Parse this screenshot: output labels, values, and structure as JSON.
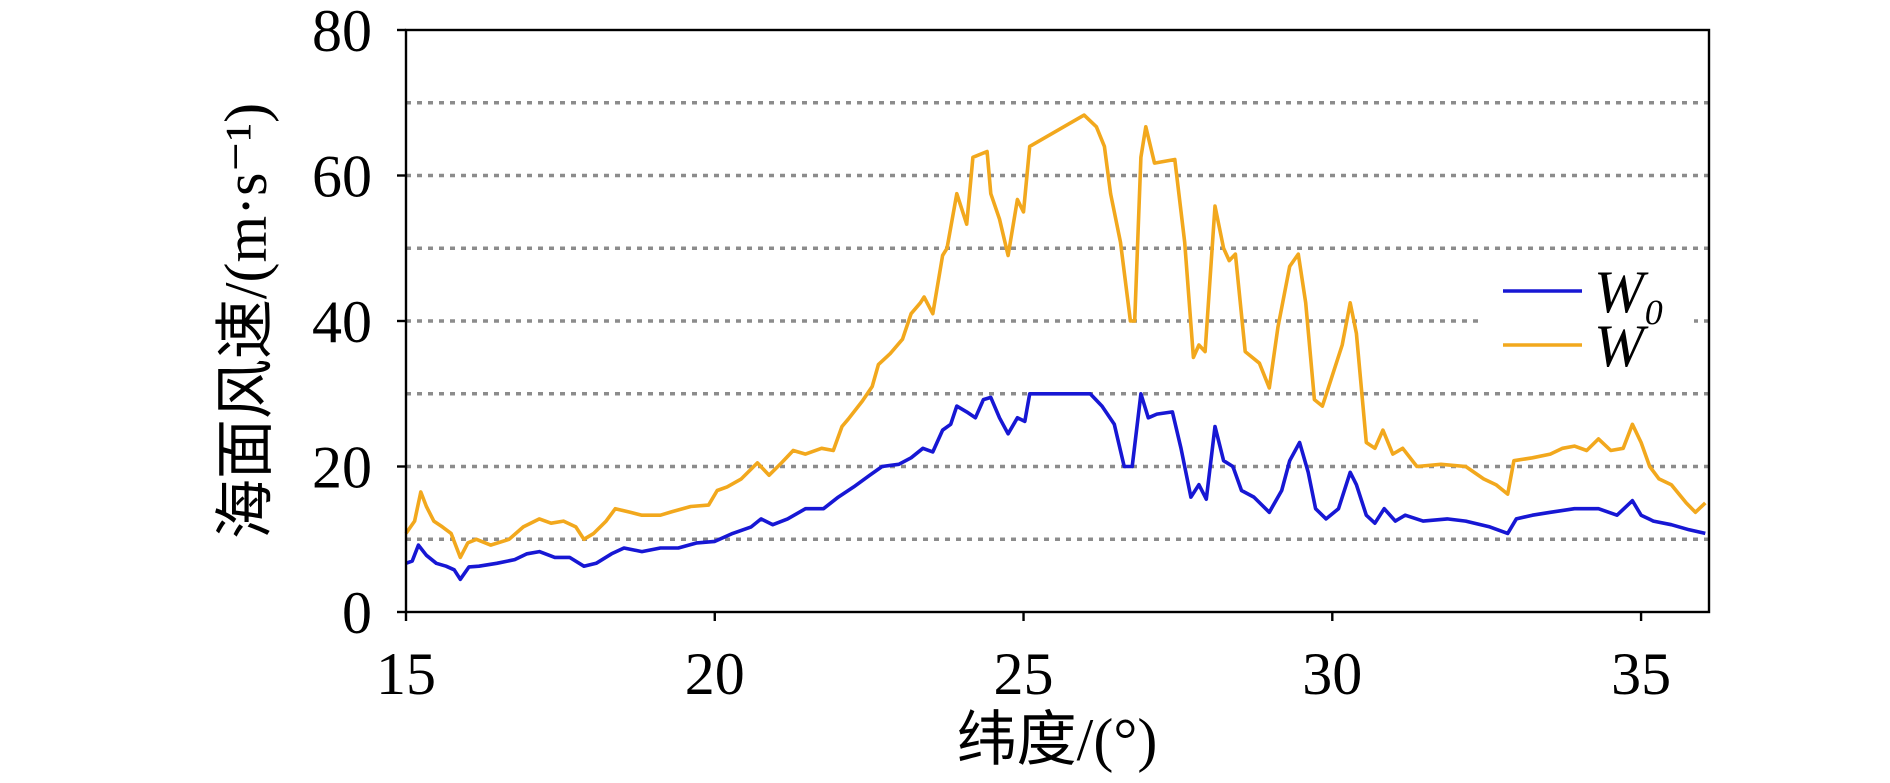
{
  "chart_data": {
    "type": "line",
    "xlabel": "纬度/(°)",
    "ylabel": "海面风速/(m·s⁻¹)",
    "xlim": [
      15,
      36.1
    ],
    "ylim": [
      0,
      80
    ],
    "xticks": [
      15,
      20,
      25,
      30,
      35
    ],
    "yticks": [
      0,
      20,
      40,
      60,
      80
    ],
    "grid": {
      "on": true,
      "axis": "y",
      "style": "dotted",
      "color": "#8c8c8c",
      "y_values": [
        10,
        20,
        30,
        40,
        50,
        60,
        70
      ]
    },
    "legend": {
      "placement": "right"
    },
    "series": [
      {
        "name": "W₀",
        "color": "#1717d4",
        "x": [
          15.0,
          15.1,
          15.2,
          15.33,
          15.49,
          15.65,
          15.78,
          15.88,
          16.02,
          16.18,
          16.47,
          16.76,
          16.96,
          17.16,
          17.41,
          17.65,
          17.88,
          18.08,
          18.33,
          18.53,
          18.82,
          19.12,
          19.41,
          19.71,
          20.0,
          20.29,
          20.59,
          20.75,
          20.94,
          21.18,
          21.47,
          21.76,
          22.0,
          22.25,
          22.51,
          22.71,
          22.98,
          23.18,
          23.37,
          23.53,
          23.69,
          23.82,
          23.92,
          24.08,
          24.22,
          24.35,
          24.47,
          24.61,
          24.75,
          24.9,
          25.02,
          25.1,
          26.08,
          26.27,
          26.47,
          26.63,
          26.76,
          26.9,
          27.02,
          27.16,
          27.41,
          27.55,
          27.71,
          27.84,
          27.96,
          28.1,
          28.24,
          28.39,
          28.53,
          28.73,
          28.98,
          29.18,
          29.31,
          29.47,
          29.61,
          29.73,
          29.9,
          30.1,
          30.29,
          30.39,
          30.55,
          30.69,
          30.84,
          31.02,
          31.18,
          31.47,
          31.86,
          32.16,
          32.55,
          32.84,
          32.98,
          33.24,
          33.53,
          33.92,
          34.31,
          34.61,
          34.86,
          35.0,
          35.2,
          35.49,
          35.78,
          36.04
        ],
        "y": [
          6.7,
          7.0,
          9.2,
          7.8,
          6.7,
          6.3,
          5.8,
          4.5,
          6.2,
          6.3,
          6.7,
          7.2,
          8.0,
          8.3,
          7.5,
          7.5,
          6.3,
          6.7,
          8.0,
          8.8,
          8.3,
          8.8,
          8.8,
          9.5,
          9.7,
          10.8,
          11.7,
          12.8,
          12.0,
          12.8,
          14.2,
          14.2,
          15.8,
          17.2,
          18.8,
          20.0,
          20.3,
          21.2,
          22.5,
          22.0,
          25.0,
          25.8,
          28.3,
          27.5,
          26.7,
          29.2,
          29.5,
          26.7,
          24.5,
          26.7,
          26.2,
          30.0,
          30.0,
          28.3,
          25.8,
          20.0,
          20.0,
          30.0,
          26.7,
          27.2,
          27.5,
          22.5,
          15.8,
          17.5,
          15.5,
          25.5,
          20.8,
          20.0,
          16.7,
          15.8,
          13.7,
          16.7,
          20.8,
          23.3,
          19.2,
          14.2,
          12.8,
          14.2,
          19.2,
          17.5,
          13.3,
          12.2,
          14.2,
          12.5,
          13.3,
          12.5,
          12.8,
          12.5,
          11.7,
          10.8,
          12.8,
          13.3,
          13.7,
          14.2,
          14.2,
          13.3,
          15.3,
          13.3,
          12.5,
          12.0,
          11.3,
          10.8
        ]
      },
      {
        "name": "W",
        "color": "#f2a81d",
        "x": [
          15.0,
          15.14,
          15.24,
          15.33,
          15.45,
          15.59,
          15.73,
          15.88,
          16.0,
          16.14,
          16.37,
          16.67,
          16.9,
          17.16,
          17.35,
          17.55,
          17.75,
          17.88,
          18.04,
          18.24,
          18.39,
          18.63,
          18.82,
          19.12,
          19.31,
          19.61,
          19.9,
          20.04,
          20.2,
          20.43,
          20.69,
          20.88,
          21.08,
          21.27,
          21.47,
          21.73,
          21.92,
          22.06,
          22.16,
          22.39,
          22.55,
          22.65,
          22.84,
          23.04,
          23.18,
          23.33,
          23.39,
          23.53,
          23.69,
          23.76,
          23.92,
          24.08,
          24.18,
          24.41,
          24.47,
          24.61,
          24.75,
          24.9,
          25.0,
          25.1,
          25.98,
          26.18,
          26.31,
          26.41,
          26.57,
          26.73,
          26.8,
          26.9,
          26.98,
          27.12,
          27.45,
          27.61,
          27.75,
          27.84,
          27.94,
          28.1,
          28.24,
          28.33,
          28.43,
          28.59,
          28.82,
          28.98,
          29.12,
          29.31,
          29.45,
          29.57,
          29.71,
          29.84,
          30.0,
          30.16,
          30.29,
          30.39,
          30.55,
          30.69,
          30.82,
          30.98,
          31.14,
          31.37,
          31.76,
          32.16,
          32.45,
          32.65,
          32.84,
          32.94,
          33.24,
          33.53,
          33.73,
          33.92,
          34.12,
          34.31,
          34.51,
          34.71,
          34.86,
          35.0,
          35.14,
          35.29,
          35.49,
          35.73,
          35.88,
          36.04
        ],
        "y": [
          10.8,
          12.5,
          16.5,
          14.5,
          12.5,
          11.7,
          10.8,
          7.5,
          9.5,
          10.0,
          9.2,
          10.0,
          11.7,
          12.8,
          12.2,
          12.5,
          11.7,
          10.0,
          10.8,
          12.5,
          14.2,
          13.7,
          13.3,
          13.3,
          13.8,
          14.5,
          14.7,
          16.7,
          17.2,
          18.3,
          20.5,
          18.8,
          20.5,
          22.2,
          21.7,
          22.5,
          22.2,
          25.5,
          26.5,
          29.0,
          31.0,
          34.0,
          35.5,
          37.5,
          41.0,
          42.5,
          43.3,
          41.0,
          49.0,
          50.0,
          57.5,
          53.3,
          62.5,
          63.3,
          57.5,
          54.0,
          49.0,
          56.7,
          55.0,
          64.0,
          68.3,
          66.7,
          64.0,
          57.5,
          50.8,
          40.0,
          40.0,
          62.5,
          66.7,
          61.7,
          62.2,
          50.8,
          35.0,
          36.7,
          35.8,
          55.8,
          50.0,
          48.3,
          49.2,
          35.8,
          34.2,
          30.8,
          39.2,
          47.5,
          49.2,
          42.5,
          29.2,
          28.3,
          32.5,
          36.7,
          42.5,
          38.3,
          23.3,
          22.5,
          25.0,
          21.7,
          22.5,
          20.0,
          20.3,
          20.0,
          18.3,
          17.5,
          16.2,
          20.8,
          21.2,
          21.7,
          22.5,
          22.8,
          22.2,
          23.8,
          22.2,
          22.5,
          25.8,
          23.3,
          20.0,
          18.3,
          17.5,
          15.0,
          13.7,
          15.0
        ]
      }
    ]
  }
}
